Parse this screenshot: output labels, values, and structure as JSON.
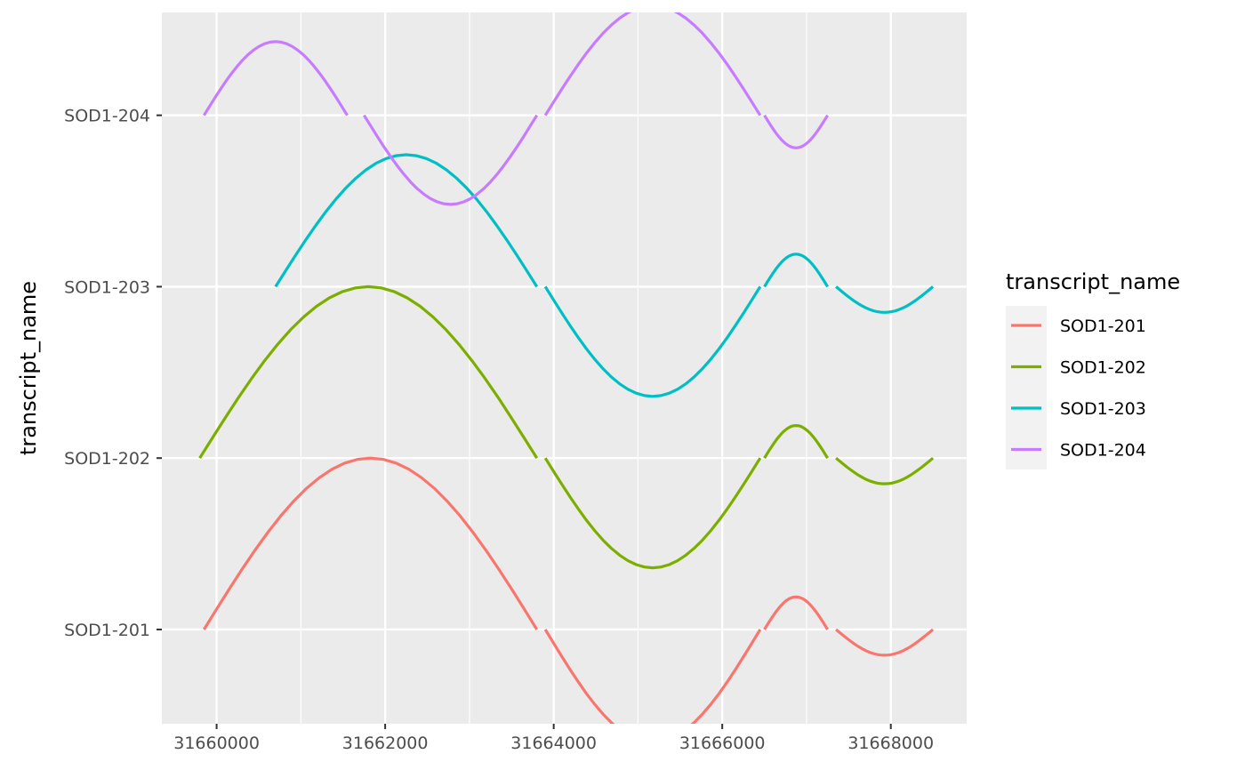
{
  "chart_data": {
    "type": "line",
    "xlabel": "",
    "ylabel": "transcript_name",
    "xlim": [
      31659350,
      31668900
    ],
    "ylim": [
      0.45,
      4.6
    ],
    "x_ticks": [
      31660000,
      31662000,
      31664000,
      31666000,
      31668000
    ],
    "x_tick_labels": [
      "31660000",
      "31662000",
      "31664000",
      "31666000",
      "31668000"
    ],
    "categories": [
      "SOD1-201",
      "SOD1-202",
      "SOD1-203",
      "SOD1-204"
    ],
    "grid": true,
    "legend": {
      "title": "transcript_name",
      "placement": "right"
    },
    "series": [
      {
        "name": "SOD1-201",
        "color": "#F8766D",
        "segments": [
          {
            "x0": 31659850,
            "x1": 31663800,
            "y": 1,
            "amp": 1.0
          },
          {
            "x0": 31663900,
            "x1": 31666450,
            "y": 1,
            "amp": -0.66
          },
          {
            "x0": 31666500,
            "x1": 31667250,
            "y": 1,
            "amp": 0.19
          },
          {
            "x0": 31667350,
            "x1": 31668500,
            "y": 1,
            "amp": -0.15
          }
        ]
      },
      {
        "name": "SOD1-202",
        "color": "#7CAE00",
        "segments": [
          {
            "x0": 31659800,
            "x1": 31663800,
            "y": 2,
            "amp": 1.0
          },
          {
            "x0": 31663900,
            "x1": 31666450,
            "y": 2,
            "amp": -0.64
          },
          {
            "x0": 31666500,
            "x1": 31667250,
            "y": 2,
            "amp": 0.19
          },
          {
            "x0": 31667350,
            "x1": 31668500,
            "y": 2,
            "amp": -0.15
          }
        ]
      },
      {
        "name": "SOD1-203",
        "color": "#00BFC4",
        "segments": [
          {
            "x0": 31660700,
            "x1": 31663800,
            "y": 3,
            "amp": 0.77
          },
          {
            "x0": 31663900,
            "x1": 31666450,
            "y": 3,
            "amp": -0.64
          },
          {
            "x0": 31666500,
            "x1": 31667250,
            "y": 3,
            "amp": 0.19
          },
          {
            "x0": 31667350,
            "x1": 31668500,
            "y": 3,
            "amp": -0.15
          }
        ]
      },
      {
        "name": "SOD1-204",
        "color": "#C77CFF",
        "segments": [
          {
            "x0": 31659850,
            "x1": 31661550,
            "y": 4,
            "amp": 0.43
          },
          {
            "x0": 31661750,
            "x1": 31663800,
            "y": 4,
            "amp": -0.52
          },
          {
            "x0": 31663900,
            "x1": 31666450,
            "y": 4,
            "amp": 0.64
          },
          {
            "x0": 31666500,
            "x1": 31667250,
            "y": 4,
            "amp": -0.19
          }
        ]
      }
    ]
  }
}
